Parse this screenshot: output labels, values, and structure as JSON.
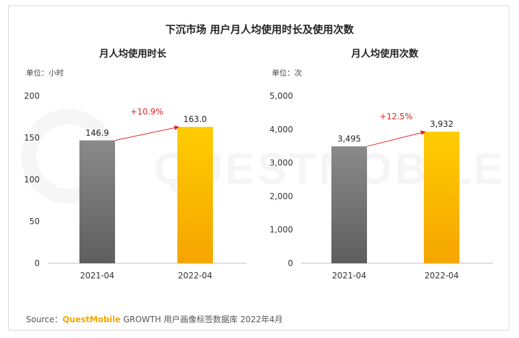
{
  "title": "下沉市场 用户月人均使用时长及使用次数",
  "watermark": "QUESTMOBILE",
  "footer": {
    "prefix": "Source：",
    "brand": "QuestMobile",
    "suffix": " GROWTH 用户画像标签数据库 2022年4月"
  },
  "colors": {
    "bar_2021": "#7a7a7a",
    "bar_2022": "#ffc000",
    "arrow": "#e02020",
    "growth_text": "#e02020"
  },
  "chart_data": [
    {
      "type": "bar",
      "title": "月人均使用时长",
      "unit_label": "单位：小时",
      "categories": [
        "2021-04",
        "2022-04"
      ],
      "values": [
        146.9,
        163.0
      ],
      "value_labels": [
        "146.9",
        "163.0"
      ],
      "growth_label": "+10.9%",
      "ylim": [
        0,
        200
      ],
      "yticks": [
        0,
        50,
        100,
        150,
        200
      ],
      "ytick_labels": [
        "0",
        "50",
        "100",
        "150",
        "200"
      ]
    },
    {
      "type": "bar",
      "title": "月人均使用次数",
      "unit_label": "单位：次",
      "categories": [
        "2021-04",
        "2022-04"
      ],
      "values": [
        3495,
        3932
      ],
      "value_labels": [
        "3,495",
        "3,932"
      ],
      "growth_label": "+12.5%",
      "ylim": [
        0,
        5000
      ],
      "yticks": [
        0,
        1000,
        2000,
        3000,
        4000,
        5000
      ],
      "ytick_labels": [
        "0",
        "1,000",
        "2,000",
        "3,000",
        "4,000",
        "5,000"
      ]
    }
  ]
}
